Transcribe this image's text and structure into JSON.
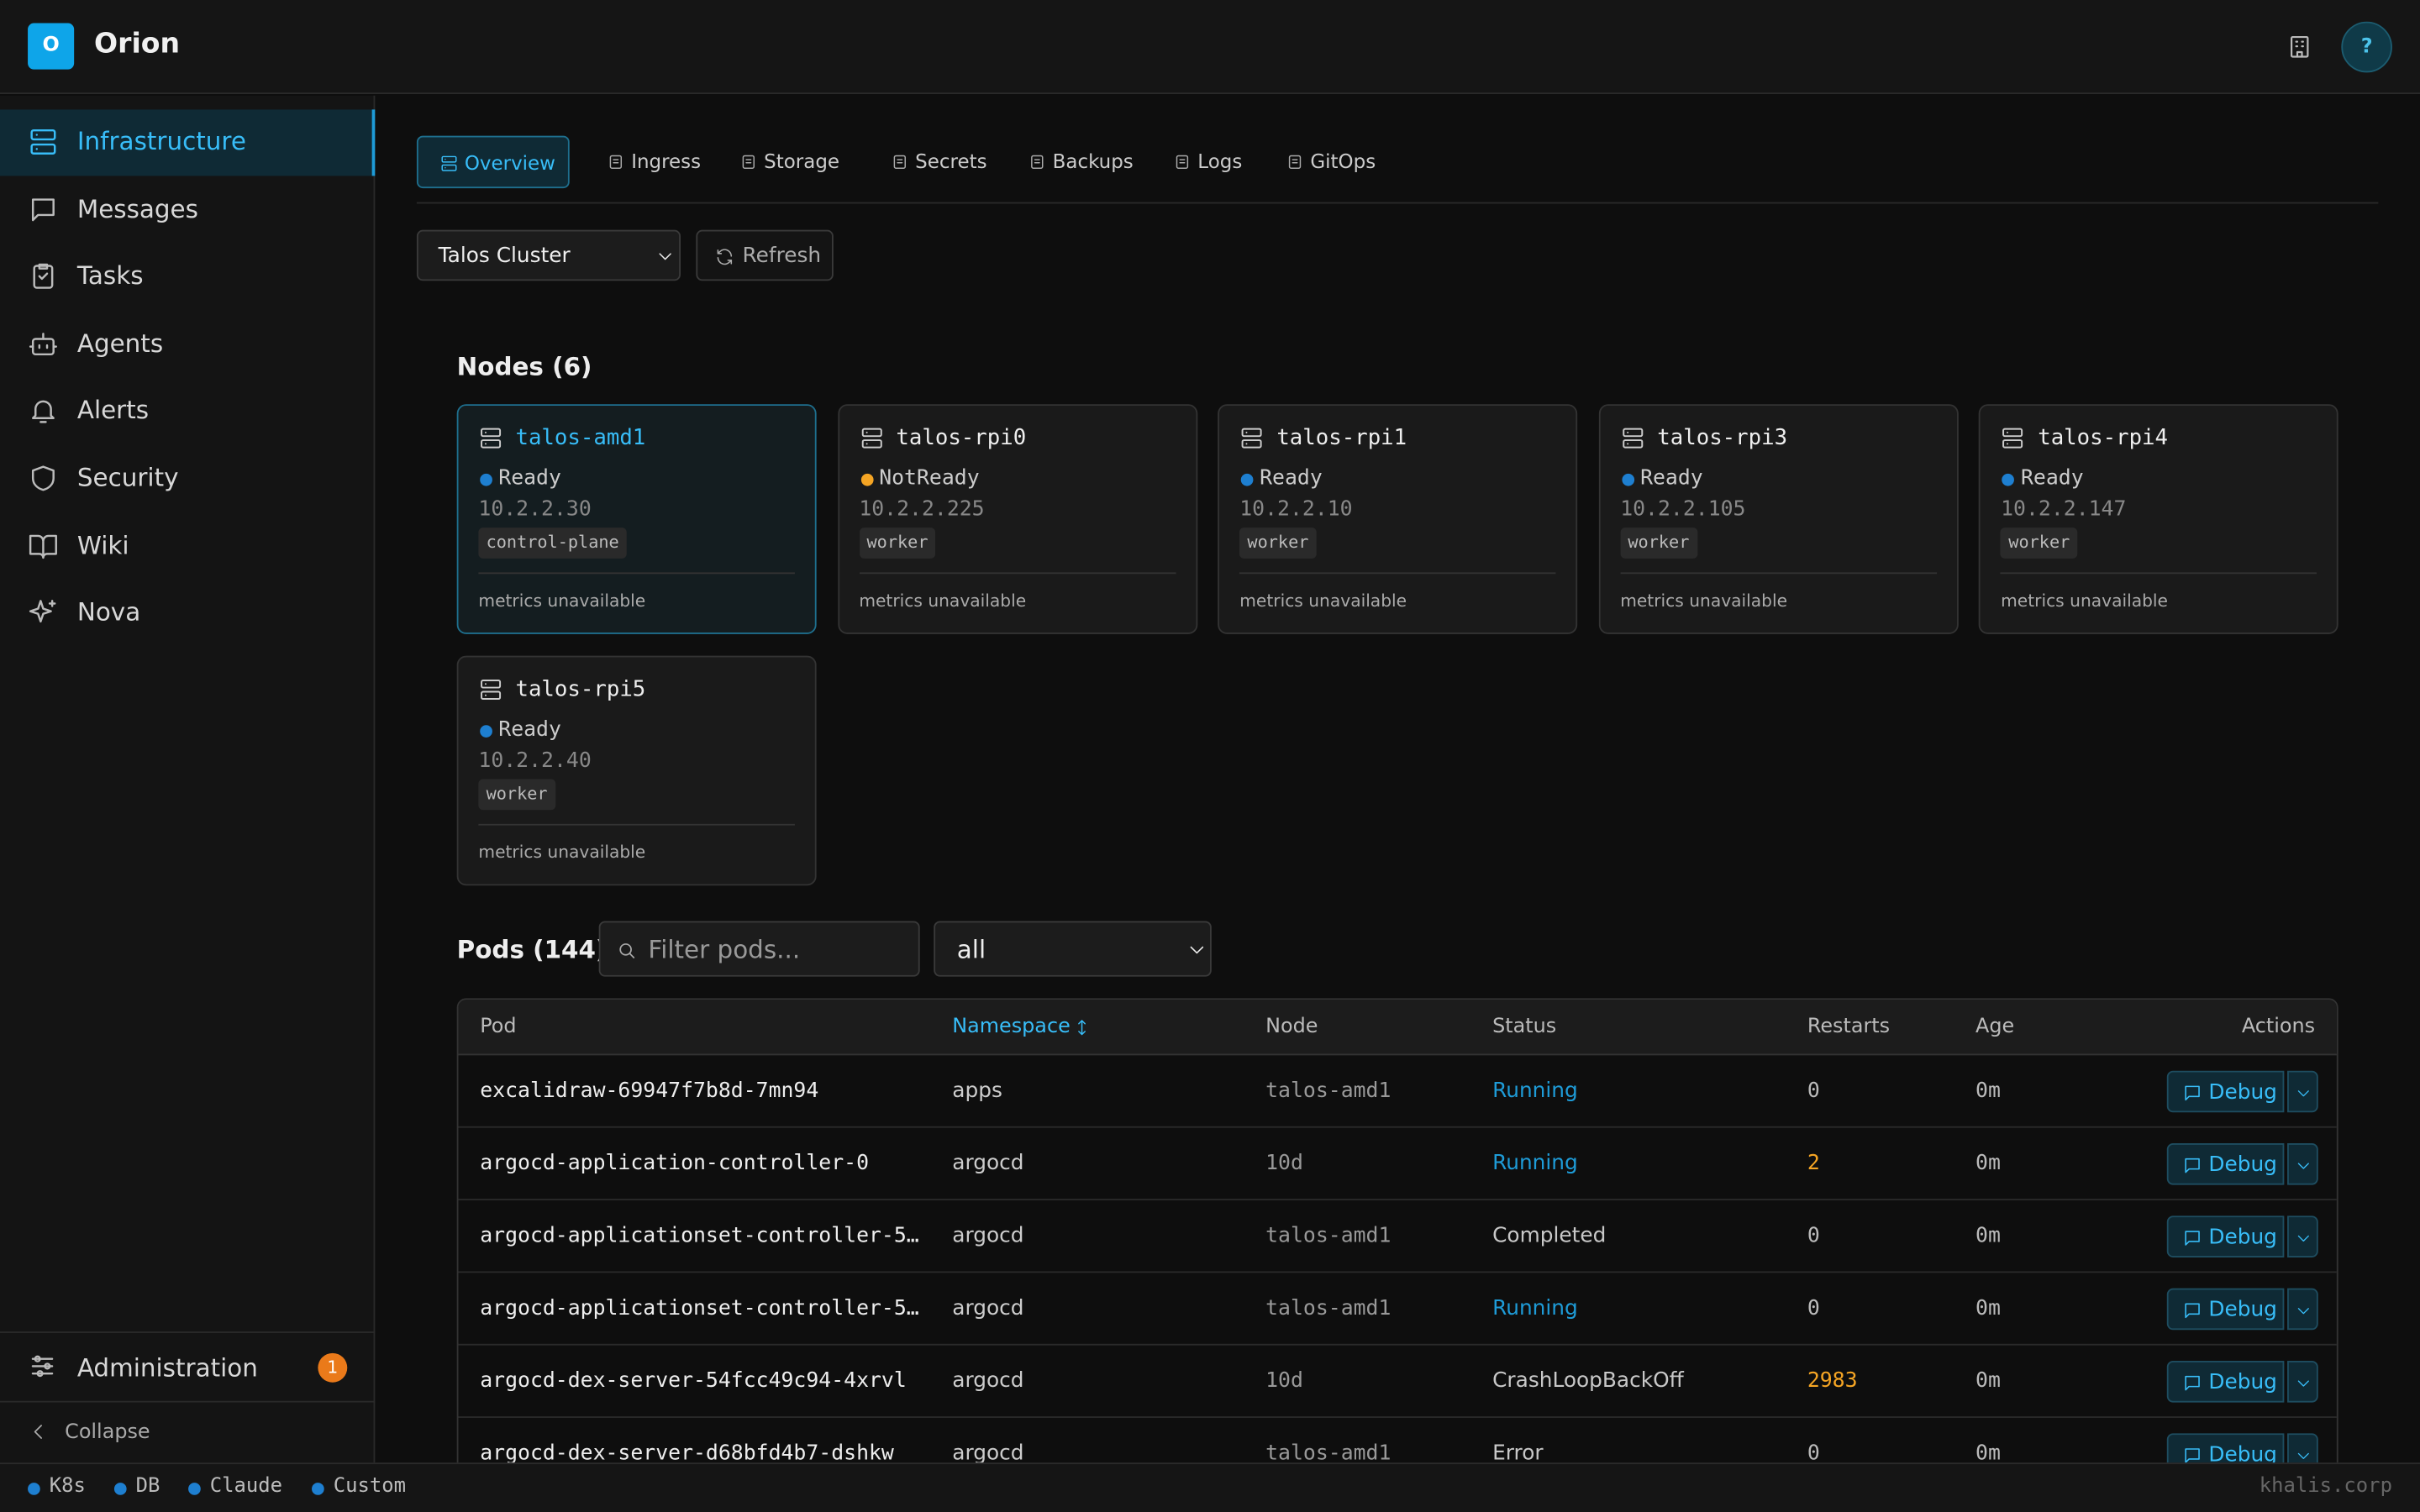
{
  "app": {
    "logo": "O",
    "name": "Orion",
    "help": "?"
  },
  "sidebar": {
    "items": [
      "Infrastructure",
      "Messages",
      "Tasks",
      "Agents",
      "Alerts",
      "Security",
      "Wiki",
      "Nova"
    ],
    "admin": "Administration",
    "admin_badge": "1",
    "collapse": "Collapse"
  },
  "tabs": [
    "Overview",
    "Ingress",
    "Storage",
    "Secrets",
    "Backups",
    "Logs",
    "GitOps"
  ],
  "toolbar": {
    "cluster": "Talos Cluster",
    "refresh": "Refresh"
  },
  "nodes": {
    "heading": "Nodes (6)",
    "items": [
      {
        "name": "talos-amd1",
        "status": "Ready",
        "status_color": "#1e7fd0",
        "ip": "10.2.2.30",
        "role": "control-plane",
        "metrics": "metrics unavailable"
      },
      {
        "name": "talos-rpi0",
        "status": "NotReady",
        "status_color": "#f5a524",
        "ip": "10.2.2.225",
        "role": "worker",
        "metrics": "metrics unavailable"
      },
      {
        "name": "talos-rpi1",
        "status": "Ready",
        "status_color": "#1e7fd0",
        "ip": "10.2.2.10",
        "role": "worker",
        "metrics": "metrics unavailable"
      },
      {
        "name": "talos-rpi3",
        "status": "Ready",
        "status_color": "#1e7fd0",
        "ip": "10.2.2.105",
        "role": "worker",
        "metrics": "metrics unavailable"
      },
      {
        "name": "talos-rpi4",
        "status": "Ready",
        "status_color": "#1e7fd0",
        "ip": "10.2.2.147",
        "role": "worker",
        "metrics": "metrics unavailable"
      },
      {
        "name": "talos-rpi5",
        "status": "Ready",
        "status_color": "#1e7fd0",
        "ip": "10.2.2.40",
        "role": "worker",
        "metrics": "metrics unavailable"
      }
    ]
  },
  "pods": {
    "heading": "Pods (144)",
    "filter_placeholder": "Filter pods...",
    "namespace_filter": "all",
    "columns": [
      "Pod",
      "Namespace",
      "Node",
      "Status",
      "Restarts",
      "Age",
      "Actions"
    ],
    "action": "Debug",
    "rows": [
      {
        "pod": "excalidraw-69947f7b8d-7mn94",
        "namespace": "apps",
        "node": "talos-amd1",
        "status": "Running",
        "status_color": "#1e9bd7",
        "restarts": 0,
        "age": "0m"
      },
      {
        "pod": "argocd-application-controller-0",
        "namespace": "argocd",
        "node": "10d",
        "status": "Running",
        "status_color": "#1e9bd7",
        "restarts": 2,
        "age": "0m"
      },
      {
        "pod": "argocd-applicationset-controller-5…",
        "namespace": "argocd",
        "node": "talos-amd1",
        "status": "Completed",
        "status_color": "#c8c8c8",
        "restarts": 0,
        "age": "0m"
      },
      {
        "pod": "argocd-applicationset-controller-5…",
        "namespace": "argocd",
        "node": "talos-amd1",
        "status": "Running",
        "status_color": "#1e9bd7",
        "restarts": 0,
        "age": "0m"
      },
      {
        "pod": "argocd-dex-server-54fcc49c94-4xrvl",
        "namespace": "argocd",
        "node": "10d",
        "status": "CrashLoopBackOff",
        "status_color": "#c8c8c8",
        "restarts": 2983,
        "age": "0m"
      },
      {
        "pod": "argocd-dex-server-d68bfd4b7-dshkw",
        "namespace": "argocd",
        "node": "talos-amd1",
        "status": "Error",
        "status_color": "#c8c8c8",
        "restarts": 0,
        "age": "0m"
      }
    ]
  },
  "footer": {
    "services": [
      "K8s",
      "DB",
      "Claude",
      "Custom"
    ],
    "host": "khalis.corp"
  }
}
